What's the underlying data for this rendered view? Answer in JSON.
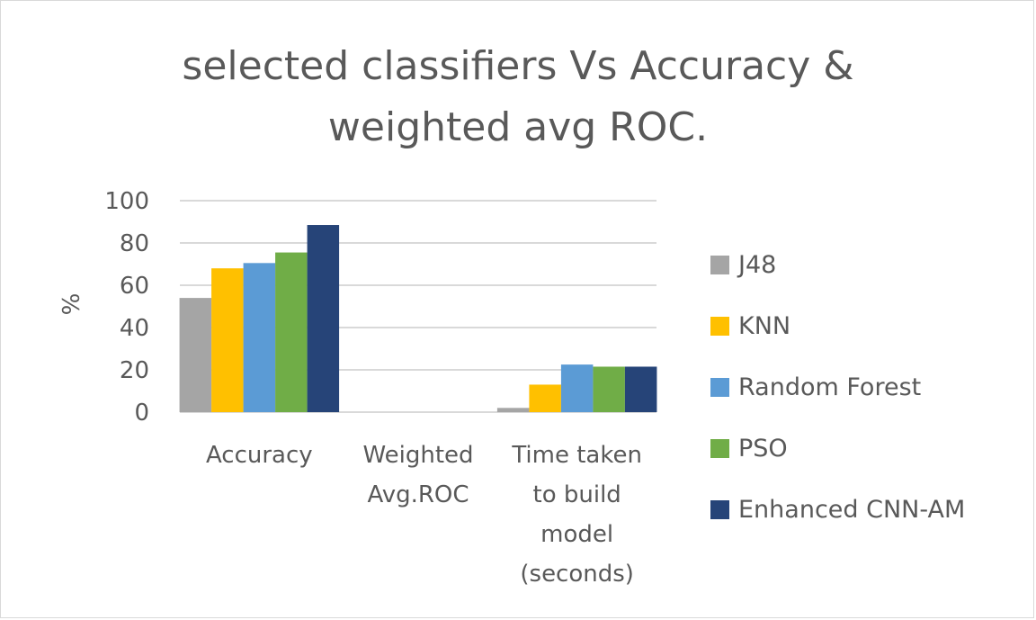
{
  "chart_data": {
    "type": "bar",
    "title_lines": [
      "selected classifiers Vs Accuracy &",
      "weighted avg  ROC."
    ],
    "xlabel": "",
    "ylabel": "%",
    "ylim": [
      0,
      100
    ],
    "yticks": [
      0,
      20,
      40,
      60,
      80,
      100
    ],
    "grid": true,
    "legend_position": "right",
    "categories": [
      [
        "Accuracy"
      ],
      [
        "Weighted",
        "Avg.ROC"
      ],
      [
        "Time taken",
        "to build",
        "model",
        "(seconds)"
      ]
    ],
    "series": [
      {
        "name": "J48",
        "color": "#a5a5a5",
        "values": [
          54,
          0,
          2
        ]
      },
      {
        "name": "KNN",
        "color": "#ffc000",
        "values": [
          68,
          0,
          13
        ]
      },
      {
        "name": "Random Forest",
        "color": "#5b9bd5",
        "values": [
          70.5,
          0,
          22.5
        ]
      },
      {
        "name": "PSO",
        "color": "#70ad47",
        "values": [
          75.5,
          0,
          21.5
        ]
      },
      {
        "name": "Enhanced CNN-AM",
        "color": "#264478",
        "values": [
          88.5,
          0,
          21.5
        ]
      }
    ]
  }
}
